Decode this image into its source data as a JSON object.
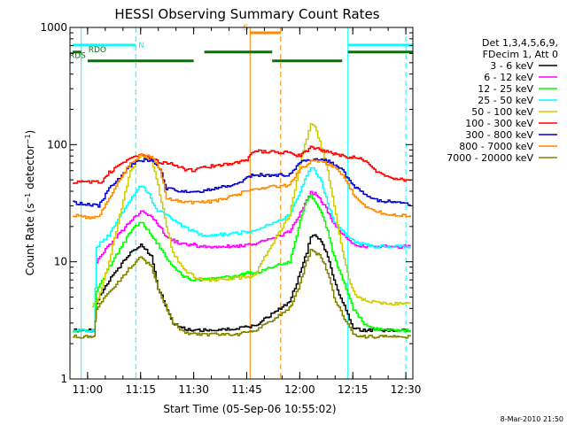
{
  "chart_data": {
    "type": "line",
    "title": "HESSI Observing Summary Count Rates",
    "xlabel": "Start Time (05-Sep-06 10:55:02)",
    "ylabel": "Count Rate (s⁻¹ detector⁻¹)",
    "ylabel_main": "Count Rate (s",
    "ylabel_sup1": "−1",
    "ylabel_mid": " detector",
    "ylabel_sup2": "−1",
    "ylabel_end": ")",
    "y_scale": "log",
    "ylim": [
      1,
      1000
    ],
    "xlim": [
      10.917,
      12.533
    ],
    "x_unit": "hour of day (UT)",
    "x_ticks": [
      {
        "v": 11.0,
        "label": "11:00"
      },
      {
        "v": 11.25,
        "label": "11:15"
      },
      {
        "v": 11.5,
        "label": "11:30"
      },
      {
        "v": 11.75,
        "label": "11:45"
      },
      {
        "v": 12.0,
        "label": "12:00"
      },
      {
        "v": 12.25,
        "label": "12:15"
      },
      {
        "v": 12.5,
        "label": "12:30"
      }
    ],
    "y_ticks": [
      {
        "v": 1,
        "label": "1"
      },
      {
        "v": 10,
        "label": "10"
      },
      {
        "v": 100,
        "label": "100"
      },
      {
        "v": 1000,
        "label": "1000"
      }
    ],
    "legend_placement": "right",
    "legend_header": [
      "Det 1,3,4,5,6,9,",
      "FDecim 1, Att 0"
    ],
    "series": [
      {
        "name": "3 - 6 keV",
        "color": "#000000",
        "x": [
          10.93,
          11.0,
          11.03,
          11.04,
          11.1,
          11.2,
          11.25,
          11.3,
          11.33,
          11.4,
          11.45,
          11.5,
          11.53,
          11.6,
          11.7,
          11.75,
          11.78,
          11.95,
          12.0,
          12.03,
          12.05,
          12.07,
          12.1,
          12.13,
          12.16,
          12.2,
          12.25,
          12.3,
          12.35,
          12.4,
          12.45,
          12.5,
          12.52
        ],
        "y": [
          2.6,
          2.6,
          2.6,
          4.5,
          7,
          12,
          14,
          11,
          6,
          3,
          2.7,
          2.6,
          2.6,
          2.6,
          2.7,
          2.8,
          2.8,
          4.5,
          8,
          12,
          16,
          17,
          15,
          11,
          7,
          4.5,
          2.7,
          2.6,
          2.6,
          2.6,
          2.6,
          2.6,
          2.6
        ]
      },
      {
        "name": "6 - 12 keV",
        "color": "#ff00ff",
        "x": [
          11.04,
          11.1,
          11.2,
          11.25,
          11.3,
          11.34,
          11.37,
          11.45,
          11.5,
          11.53,
          11.65,
          11.7,
          11.75,
          11.78,
          11.95,
          12.0,
          12.03,
          12.05,
          12.07,
          12.1,
          12.13,
          12.16,
          12.2,
          12.25,
          12.3,
          12.35,
          12.4,
          12.45,
          12.5,
          12.52
        ],
        "y": [
          10,
          14,
          22,
          27,
          24,
          20,
          16,
          14,
          14,
          13.5,
          13.5,
          13.5,
          14,
          14,
          18,
          26,
          33,
          39,
          38,
          33,
          27,
          21,
          17,
          14,
          13.5,
          13.5,
          13.5,
          13.5,
          13.5,
          13.5
        ]
      },
      {
        "name": "12 - 25 keV",
        "color": "#00ff00",
        "x": [
          10.93,
          11.0,
          11.03,
          11.04,
          11.1,
          11.2,
          11.25,
          11.3,
          11.33,
          11.4,
          11.45,
          11.5,
          11.53,
          11.6,
          11.7,
          11.75,
          11.78,
          11.95,
          12.0,
          12.03,
          12.05,
          12.07,
          12.1,
          12.13,
          12.16,
          12.2,
          12.25,
          12.3,
          12.35,
          12.4,
          12.45,
          12.5,
          12.52
        ],
        "y": [
          2.6,
          2.6,
          2.6,
          5.5,
          9,
          18,
          22,
          17,
          14,
          9,
          7.5,
          7,
          7,
          7.2,
          7.5,
          8,
          8,
          10,
          22,
          33,
          37,
          33,
          26,
          18,
          11,
          7,
          4,
          3,
          2.7,
          2.6,
          2.6,
          2.6,
          2.6
        ]
      },
      {
        "name": "25 - 50 keV",
        "color": "#00ffff",
        "x": [
          10.93,
          11.0,
          11.03,
          11.04,
          11.1,
          11.2,
          11.25,
          11.28,
          11.32,
          11.4,
          11.45,
          11.5,
          11.53,
          11.6,
          11.7,
          11.75,
          11.78,
          11.95,
          12.0,
          12.03,
          12.05,
          12.07,
          12.1,
          12.13,
          12.16,
          12.2,
          12.25,
          12.3,
          12.35,
          12.4,
          12.45,
          12.5,
          12.52
        ],
        "y": [
          2.6,
          2.6,
          2.6,
          13.5,
          17,
          34,
          45,
          40,
          28,
          23,
          20,
          18,
          17,
          17,
          17.5,
          18,
          18,
          25,
          40,
          55,
          65,
          60,
          48,
          32,
          22,
          18,
          15,
          14,
          13.5,
          13.5,
          13.5,
          13.5,
          13.5
        ]
      },
      {
        "name": "50 - 100 keV",
        "color": "#cccc00",
        "x": [
          11.02,
          11.05,
          11.1,
          11.15,
          11.2,
          11.25,
          11.3,
          11.33,
          11.37,
          11.4,
          11.45,
          11.5,
          11.55,
          11.6,
          11.7,
          11.75,
          11.78,
          11.95,
          12.0,
          12.03,
          12.05,
          12.07,
          12.1,
          12.13,
          12.16,
          12.2,
          12.23,
          12.26,
          12.3,
          12.35,
          12.4,
          12.45,
          12.5,
          12.52
        ],
        "y": [
          4.2,
          4.8,
          10,
          25,
          60,
          82,
          75,
          45,
          20,
          12,
          8.5,
          7.5,
          7,
          7,
          7.2,
          7.5,
          7.5,
          25,
          70,
          110,
          150,
          140,
          95,
          60,
          30,
          12,
          7,
          5.2,
          4.7,
          4.5,
          4.4,
          4.4,
          4.4,
          4.4
        ]
      },
      {
        "name": "100 - 300 keV",
        "color": "#ff0000",
        "x": [
          10.93,
          10.96,
          10.97,
          11.0,
          11.02,
          11.04,
          11.06,
          11.1,
          11.2,
          11.25,
          11.3,
          11.34,
          11.4,
          11.45,
          11.5,
          11.53,
          11.6,
          11.7,
          11.75,
          11.78,
          11.95,
          12.0,
          12.05,
          12.1,
          12.15,
          12.18,
          12.22,
          12.25,
          12.3,
          12.35,
          12.4,
          12.45,
          12.5,
          12.52
        ],
        "y": [
          48,
          48,
          48,
          48,
          48,
          48,
          46,
          58,
          75,
          82,
          75,
          70,
          68,
          62,
          60,
          64,
          66,
          70,
          75,
          88,
          85,
          80,
          95,
          90,
          85,
          82,
          78,
          78,
          74,
          60,
          55,
          51,
          50,
          49
        ]
      },
      {
        "name": "300 - 800 keV",
        "color": "#0000cc",
        "x": [
          10.93,
          11.0,
          11.05,
          11.1,
          11.2,
          11.25,
          11.3,
          11.34,
          11.37,
          11.45,
          11.5,
          11.53,
          11.6,
          11.7,
          11.75,
          11.78,
          11.95,
          12.0,
          12.05,
          12.1,
          12.15,
          12.2,
          12.25,
          12.3,
          12.35,
          12.4,
          12.45,
          12.5,
          12.52
        ],
        "y": [
          32,
          31,
          30,
          42,
          66,
          74,
          73,
          62,
          42,
          40,
          40,
          40,
          42,
          46,
          52,
          55,
          55,
          70,
          75,
          75,
          70,
          60,
          45,
          38,
          34,
          33,
          32,
          31,
          31
        ]
      },
      {
        "name": "800 - 7000 keV",
        "color": "#ff8800",
        "x": [
          10.93,
          11.0,
          11.05,
          11.1,
          11.2,
          11.25,
          11.3,
          11.34,
          11.37,
          11.45,
          11.5,
          11.53,
          11.6,
          11.7,
          11.75,
          11.78,
          11.95,
          12.0,
          12.05,
          12.1,
          12.15,
          12.2,
          12.25,
          12.3,
          12.35,
          12.4,
          12.45,
          12.5,
          12.52
        ],
        "y": [
          25,
          24,
          24,
          35,
          70,
          82,
          78,
          62,
          35,
          32,
          32,
          32,
          33,
          37,
          41,
          42,
          45,
          62,
          72,
          72,
          66,
          55,
          38,
          30,
          27,
          26,
          25,
          25,
          25
        ]
      },
      {
        "name": "7000 - 20000 keV",
        "color": "#808000",
        "x": [
          10.93,
          11.0,
          11.03,
          11.04,
          11.1,
          11.2,
          11.25,
          11.3,
          11.33,
          11.4,
          11.45,
          11.5,
          11.53,
          11.6,
          11.7,
          11.75,
          11.78,
          11.95,
          12.0,
          12.03,
          12.05,
          12.07,
          12.1,
          12.13,
          12.16,
          12.2,
          12.25,
          12.3,
          12.35,
          12.4,
          12.45,
          12.5,
          12.52
        ],
        "y": [
          2.3,
          2.3,
          2.3,
          4,
          5.5,
          9,
          11,
          9,
          6,
          3,
          2.5,
          2.4,
          2.4,
          2.4,
          2.4,
          2.5,
          2.5,
          4,
          6.5,
          10,
          13,
          12,
          11,
          8,
          5,
          3.5,
          2.4,
          2.3,
          2.3,
          2.3,
          2.3,
          2.3,
          2.3
        ]
      }
    ],
    "markers": {
      "vertical_solid": [
        {
          "x": 10.97,
          "color": "#00ffff"
        },
        {
          "x": 11.766,
          "color": "#ff8800"
        },
        {
          "x": 12.227,
          "color": "#00ffff"
        }
      ],
      "vertical_dashed": [
        {
          "x": 11.227,
          "color": "#00ffff"
        },
        {
          "x": 11.91,
          "color": "#ff8800"
        },
        {
          "x": 12.5,
          "color": "#00ffff"
        }
      ],
      "flag_bars": [
        {
          "x1": 10.93,
          "x2": 11.227,
          "level": 0.95,
          "color": "#00ffff",
          "label": "N",
          "label_at": "end"
        },
        {
          "x1": 12.227,
          "x2": 12.533,
          "level": 0.95,
          "color": "#00ffff",
          "label": "",
          "label_at": "end"
        },
        {
          "x1": 11.766,
          "x2": 11.91,
          "level": 0.985,
          "color": "#ff8800",
          "label": "S",
          "label_at": "start"
        },
        {
          "x1": 10.93,
          "x2": 10.97,
          "level": 0.93,
          "color": "#007700",
          "label": "RDO",
          "label_at": "after"
        },
        {
          "x1": 11.55,
          "x2": 11.87,
          "level": 0.93,
          "color": "#007700",
          "label": "",
          "label_at": "none"
        },
        {
          "x1": 12.227,
          "x2": 12.533,
          "level": 0.93,
          "color": "#007700",
          "label": "",
          "label_at": "none"
        },
        {
          "x1": 11.0,
          "x2": 11.5,
          "level": 0.905,
          "color": "#007700",
          "label": "RDS",
          "label_at": "start"
        },
        {
          "x1": 11.87,
          "x2": 12.2,
          "level": 0.905,
          "color": "#007700",
          "label": "",
          "label_at": "none"
        }
      ]
    }
  },
  "footer": {
    "date_stamp": "8-Mar-2010 21:50"
  }
}
